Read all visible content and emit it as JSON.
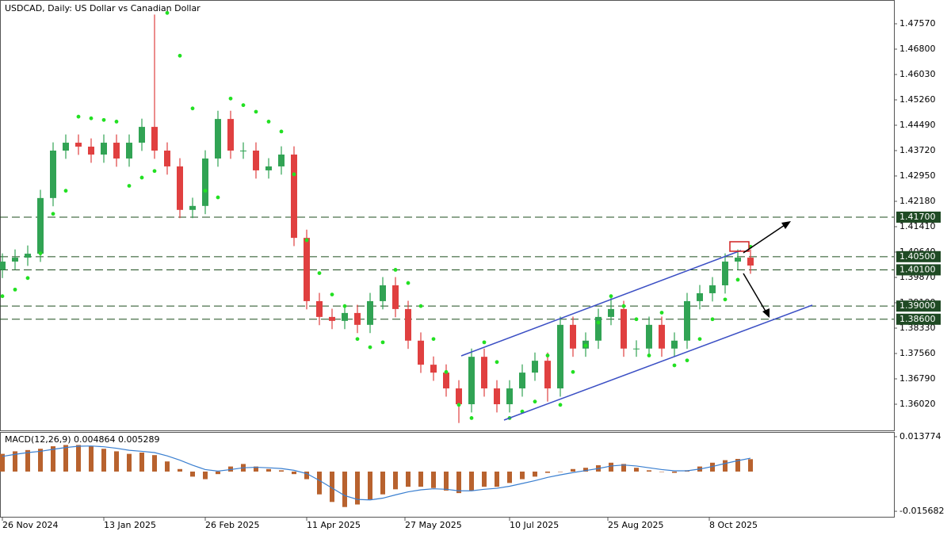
{
  "chart_data": {
    "type": "candlestick",
    "title": "USDCAD, Daily:  US Dollar vs Canadian Dollar",
    "up_color": "#31a354",
    "down_color": "#e04040",
    "sar_color": "#22e022",
    "xlim": [
      -0.75,
      281.25
    ],
    "xticks": [
      {
        "value": 0,
        "label": "26 Nov 2024"
      },
      {
        "value": 32,
        "label": "13 Jan 2025"
      },
      {
        "value": 64,
        "label": "26 Feb 2025"
      },
      {
        "value": 96,
        "label": "11 Apr 2025"
      },
      {
        "value": 127,
        "label": "27 May 2025"
      },
      {
        "value": 160,
        "label": "10 Jul 2025"
      },
      {
        "value": 191,
        "label": "25 Aug 2025"
      },
      {
        "value": 223,
        "label": "8 Oct 2025"
      }
    ],
    "ylim": [
      1.35226,
      1.48292
    ],
    "yticks": [
      {
        "value": 1.4757,
        "label": "1.47570"
      },
      {
        "value": 1.468,
        "label": "1.46800"
      },
      {
        "value": 1.4603,
        "label": "1.46030"
      },
      {
        "value": 1.4526,
        "label": "1.45260"
      },
      {
        "value": 1.4449,
        "label": "1.44490"
      },
      {
        "value": 1.4372,
        "label": "1.43720"
      },
      {
        "value": 1.4295,
        "label": "1.42950"
      },
      {
        "value": 1.4218,
        "label": "1.42180"
      },
      {
        "value": 1.4141,
        "label": "1.41410"
      },
      {
        "value": 1.4064,
        "label": "1.40640"
      },
      {
        "value": 1.3987,
        "label": "1.39870"
      },
      {
        "value": 1.391,
        "label": "1.39100"
      },
      {
        "value": 1.3833,
        "label": "1.38330"
      },
      {
        "value": 1.3756,
        "label": "1.37560"
      },
      {
        "value": 1.3679,
        "label": "1.36790"
      },
      {
        "value": 1.3602,
        "label": "1.36020"
      }
    ],
    "levels": [
      {
        "value": 1.417,
        "label": "1.41700"
      },
      {
        "value": 1.405,
        "label": "1.40500"
      },
      {
        "value": 1.401,
        "label": "1.40100"
      },
      {
        "value": 1.39,
        "label": "1.39000"
      },
      {
        "value": 1.386,
        "label": "1.38600"
      }
    ],
    "x": [
      0,
      4,
      8,
      12,
      16,
      20,
      24,
      28,
      32,
      36,
      40,
      44,
      48,
      52,
      56,
      60,
      64,
      68,
      72,
      76,
      80,
      84,
      88,
      92,
      96,
      100,
      104,
      108,
      112,
      116,
      120,
      124,
      128,
      132,
      136,
      140,
      144,
      148,
      152,
      156,
      160,
      164,
      168,
      172,
      176,
      180,
      184,
      188,
      192,
      196,
      200,
      204,
      208,
      212,
      216,
      220,
      224,
      228,
      232,
      236
    ],
    "open": [
      1.401,
      1.4035,
      1.4047,
      1.4059,
      1.4228,
      1.4372,
      1.4396,
      1.4384,
      1.436,
      1.4396,
      1.4348,
      1.4396,
      1.4444,
      1.4372,
      1.4324,
      1.4192,
      1.4204,
      1.4348,
      1.4468,
      1.4372,
      1.4372,
      1.4312,
      1.4324,
      1.436,
      1.4107,
      1.3915,
      1.3867,
      1.3855,
      1.3879,
      1.3843,
      1.3915,
      1.3963,
      1.3891,
      1.3795,
      1.3722,
      1.3698,
      1.365,
      1.3602,
      1.3746,
      1.365,
      1.3602,
      1.365,
      1.3698,
      1.3734,
      1.365,
      1.3843,
      1.3771,
      1.3795,
      1.3867,
      1.3891,
      1.3771,
      1.3771,
      1.3843,
      1.3771,
      1.3795,
      1.3915,
      1.3939,
      1.3963,
      1.4035,
      1.4047
    ],
    "high": [
      1.406,
      1.4072,
      1.4084,
      1.4253,
      1.4397,
      1.4421,
      1.4421,
      1.4409,
      1.4421,
      1.4421,
      1.4421,
      1.4469,
      1.4785,
      1.4397,
      1.4349,
      1.4229,
      1.4373,
      1.4493,
      1.4493,
      1.4397,
      1.4397,
      1.4349,
      1.4385,
      1.4385,
      1.4132,
      1.394,
      1.3892,
      1.3904,
      1.3904,
      1.394,
      1.3988,
      1.3988,
      1.3916,
      1.382,
      1.3747,
      1.3723,
      1.3675,
      1.3771,
      1.3771,
      1.3675,
      1.3675,
      1.3723,
      1.3759,
      1.3759,
      1.3868,
      1.3868,
      1.382,
      1.3892,
      1.393,
      1.3916,
      1.3796,
      1.3868,
      1.3868,
      1.382,
      1.394,
      1.3964,
      1.3988,
      1.406,
      1.4072,
      1.4072
    ],
    "low": [
      1.3985,
      1.401,
      1.4022,
      1.4034,
      1.4203,
      1.4347,
      1.4359,
      1.4335,
      1.4335,
      1.4323,
      1.4323,
      1.4371,
      1.4347,
      1.4299,
      1.4167,
      1.4167,
      1.4179,
      1.4323,
      1.4347,
      1.4347,
      1.4287,
      1.4287,
      1.4299,
      1.4082,
      1.389,
      1.3842,
      1.383,
      1.383,
      1.3818,
      1.3818,
      1.389,
      1.3866,
      1.377,
      1.3697,
      1.3673,
      1.3625,
      1.3545,
      1.3577,
      1.3625,
      1.3577,
      1.3577,
      1.3625,
      1.3673,
      1.361,
      1.3625,
      1.3746,
      1.3746,
      1.377,
      1.3842,
      1.3746,
      1.3746,
      1.3746,
      1.3746,
      1.3746,
      1.377,
      1.389,
      1.3914,
      1.3938,
      1.401,
      1.3998
    ],
    "close": [
      1.4035,
      1.4047,
      1.4059,
      1.4228,
      1.4372,
      1.4396,
      1.4384,
      1.436,
      1.4396,
      1.4348,
      1.4396,
      1.4444,
      1.4372,
      1.4324,
      1.4192,
      1.4204,
      1.4348,
      1.4468,
      1.4372,
      1.4372,
      1.4312,
      1.4324,
      1.436,
      1.4107,
      1.3915,
      1.3867,
      1.3855,
      1.3879,
      1.3843,
      1.3915,
      1.3963,
      1.3891,
      1.3795,
      1.3722,
      1.3698,
      1.365,
      1.3602,
      1.3746,
      1.365,
      1.3602,
      1.365,
      1.3698,
      1.3734,
      1.365,
      1.3843,
      1.3771,
      1.3795,
      1.3867,
      1.3891,
      1.3771,
      1.3771,
      1.3843,
      1.3771,
      1.3795,
      1.3915,
      1.3939,
      1.3963,
      1.4035,
      1.4047,
      1.4023
    ],
    "sar": [
      1.393,
      1.395,
      1.3985,
      1.406,
      1.418,
      1.425,
      1.4475,
      1.447,
      1.4465,
      1.446,
      1.4265,
      1.429,
      1.431,
      1.479,
      1.466,
      1.45,
      1.425,
      1.423,
      1.453,
      1.451,
      1.449,
      1.446,
      1.443,
      1.43,
      1.41,
      1.4,
      1.3935,
      1.39,
      1.38,
      1.3775,
      1.379,
      1.401,
      1.397,
      1.39,
      1.38,
      1.37,
      1.36,
      1.356,
      1.379,
      1.373,
      1.356,
      1.358,
      1.361,
      1.375,
      1.36,
      1.37,
      1.378,
      1.385,
      1.393,
      1.39,
      1.386,
      1.375,
      1.388,
      1.372,
      1.3735,
      1.38,
      1.386,
      1.392,
      1.398,
      1.408
    ],
    "macd": {
      "label": "MACD(12,26,9) 0.004864 0.005289",
      "hist_color": "#b8622e",
      "signal_color": "#3a7fd0",
      "ylim": [
        -0.01785,
        0.01533
      ],
      "yticks": [
        0.013774,
        -0.015682
      ],
      "values": [
        0.007,
        0.008,
        0.0085,
        0.009,
        0.01,
        0.0105,
        0.0105,
        0.01,
        0.009,
        0.008,
        0.007,
        0.0075,
        0.0065,
        0.004,
        0.001,
        -0.002,
        -0.003,
        -0.001,
        0.002,
        0.003,
        0.002,
        0.001,
        0.0005,
        -0.001,
        -0.003,
        -0.009,
        -0.012,
        -0.014,
        -0.013,
        -0.011,
        -0.009,
        -0.007,
        -0.006,
        -0.006,
        -0.0065,
        -0.0075,
        -0.0085,
        -0.0075,
        -0.006,
        -0.006,
        -0.0045,
        -0.003,
        -0.002,
        -0.0005,
        0.0,
        0.001,
        0.0015,
        0.0025,
        0.0035,
        0.003,
        0.0015,
        0.0005,
        0.0,
        -0.0005,
        0.0005,
        0.002,
        0.0035,
        0.0045,
        0.005,
        0.0049
      ],
      "signal": [
        0.006,
        0.0068,
        0.0075,
        0.008,
        0.0088,
        0.0095,
        0.01,
        0.0101,
        0.0098,
        0.0092,
        0.0084,
        0.008,
        0.0075,
        0.0062,
        0.0045,
        0.0025,
        0.0008,
        0.0002,
        0.0008,
        0.0015,
        0.0017,
        0.0015,
        0.0012,
        0.0005,
        -0.0008,
        -0.0035,
        -0.0065,
        -0.0095,
        -0.011,
        -0.0112,
        -0.0105,
        -0.0092,
        -0.008,
        -0.0072,
        -0.0068,
        -0.007,
        -0.0076,
        -0.0076,
        -0.007,
        -0.0066,
        -0.0058,
        -0.0047,
        -0.0036,
        -0.0023,
        -0.0013,
        -0.0004,
        0.0004,
        0.0012,
        0.0022,
        0.0026,
        0.0022,
        0.0015,
        0.0008,
        0.0003,
        0.0003,
        0.001,
        0.002,
        0.0032,
        0.0043,
        0.0053
      ]
    }
  }
}
